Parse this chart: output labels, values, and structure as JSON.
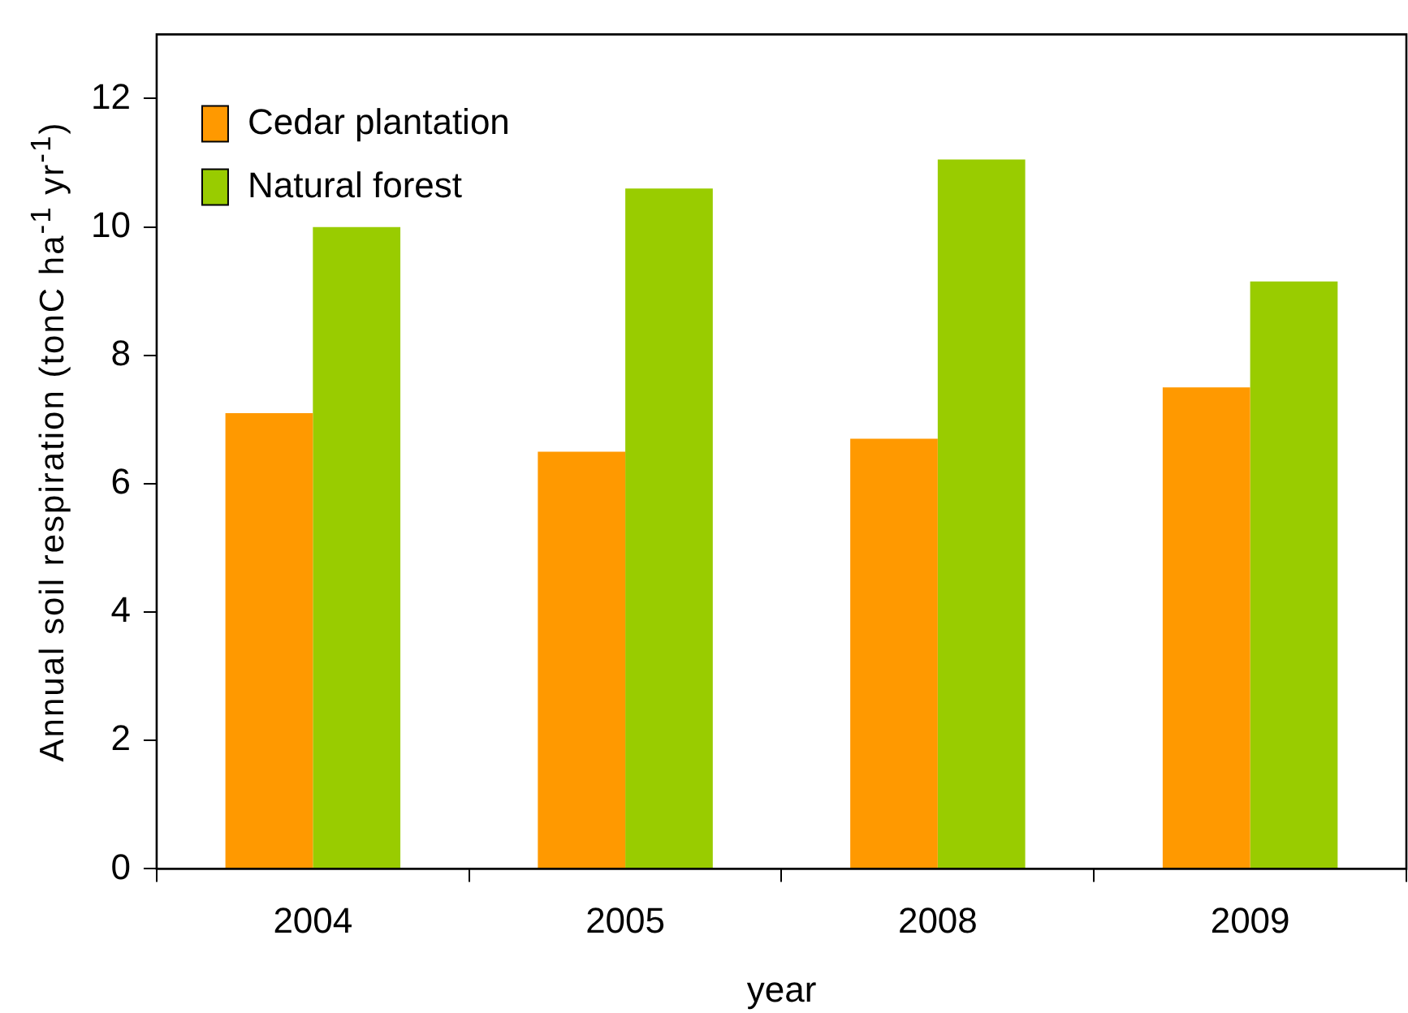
{
  "chart_data": {
    "type": "bar",
    "xlabel": "year",
    "ylabel": "Annual soil respiration (tonC ha$^{-1}$ yr$^{-1}$)",
    "categories": [
      "2004",
      "2005",
      "2008",
      "2009"
    ],
    "series": [
      {
        "name": "Cedar plantation",
        "color": "#ff9900",
        "values": [
          7.1,
          6.5,
          6.7,
          7.5
        ]
      },
      {
        "name": "Natural forest",
        "color": "#99cc00",
        "values": [
          10.0,
          10.6,
          11.05,
          9.15
        ]
      }
    ],
    "ylim": [
      0,
      13
    ],
    "yticks": [
      0,
      2,
      4,
      6,
      8,
      10,
      12
    ],
    "grid": false,
    "legend": "top left"
  }
}
